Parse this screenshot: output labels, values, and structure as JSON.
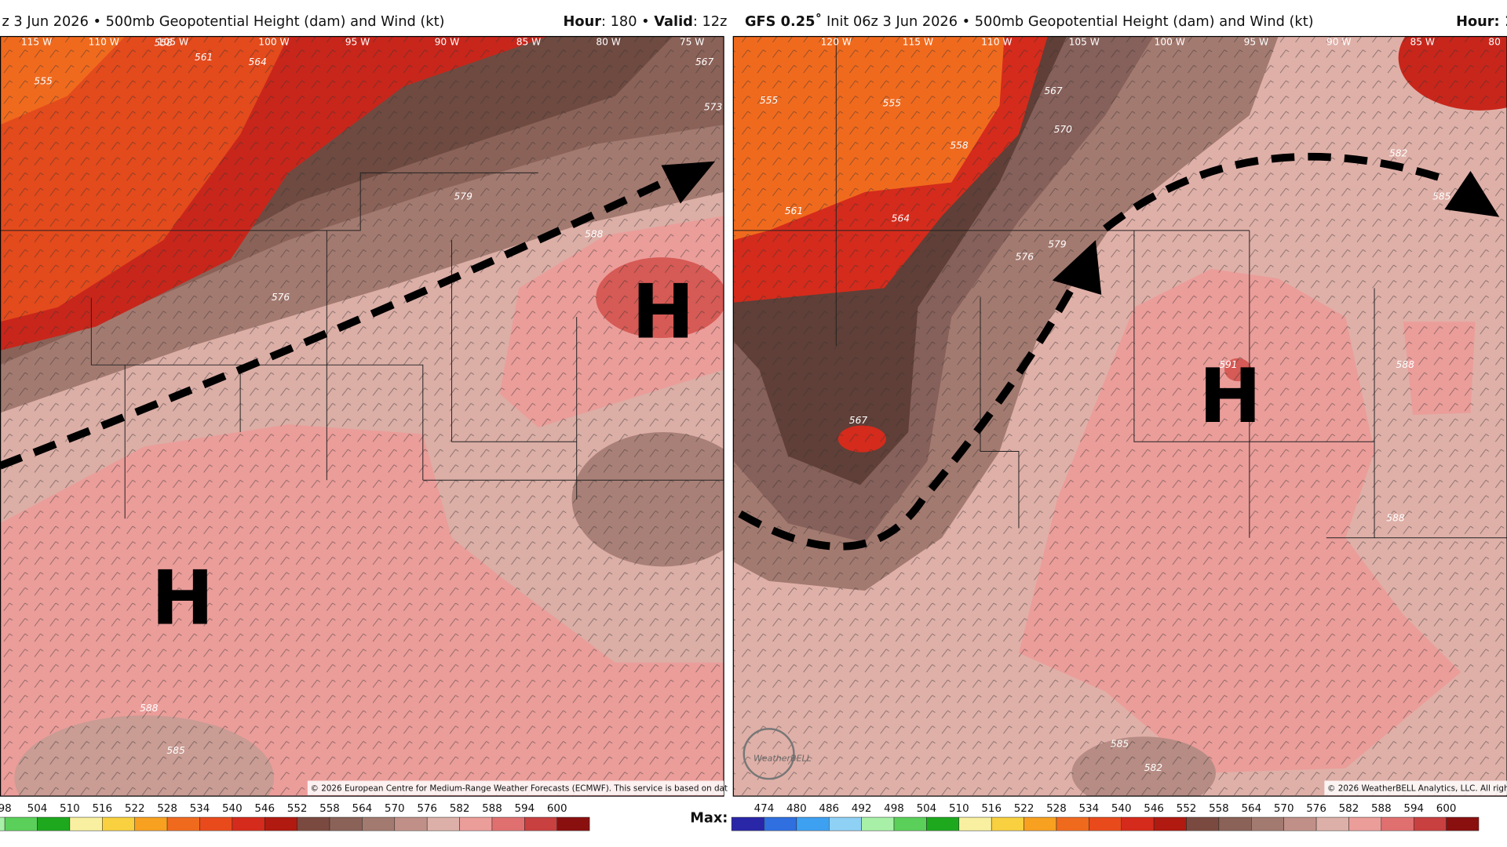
{
  "left_panel": {
    "title": "z 3 Jun 2026 • 500mb Geopotential Height (dam) and Wind (kt)",
    "hour_label": "Hour",
    "hour_value": ": 180 • ",
    "valid_label": "Valid",
    "valid_value": ": 12z",
    "longitudes": [
      "115 W",
      "110 W",
      "105 W",
      "100 W",
      "95 W",
      "90 W",
      "85 W",
      "80 W",
      "75 W"
    ],
    "contour_labels": [
      555,
      558,
      561,
      564,
      567,
      573,
      579,
      588,
      576,
      588,
      585
    ],
    "highs": [
      "H",
      "H"
    ],
    "credit": "© 2026 European Centre for Medium-Range Weather Forecasts (ECMWF). This service is based on dat",
    "colorbar": [
      98,
      504,
      510,
      516,
      522,
      528,
      534,
      540,
      546,
      552,
      558,
      564,
      570,
      576,
      582,
      588,
      594,
      600
    ],
    "max_label": "Max:"
  },
  "right_panel": {
    "model": "GFS 0.25˚",
    "title": " Init 06z 3 Jun 2026 • 500mb Geopotential Height (dam) and Wind (kt)",
    "hour_label": "Hour: 1",
    "longitudes": [
      "120 W",
      "115 W",
      "110 W",
      "105 W",
      "100 W",
      "95 W",
      "90 W",
      "85 W",
      "80"
    ],
    "contour_labels": [
      555,
      555,
      558,
      561,
      564,
      567,
      570,
      576,
      579,
      582,
      585,
      567,
      591,
      588,
      588,
      585,
      582
    ],
    "highs": [
      "H"
    ],
    "logo": "WeatherBELL",
    "credit": "© 2026 WeatherBELL Analytics, LLC. All righ",
    "colorbar": [
      474,
      480,
      486,
      492,
      498,
      504,
      510,
      516,
      522,
      528,
      534,
      540,
      546,
      552,
      558,
      564,
      570,
      576,
      582,
      588,
      594,
      600
    ]
  }
}
